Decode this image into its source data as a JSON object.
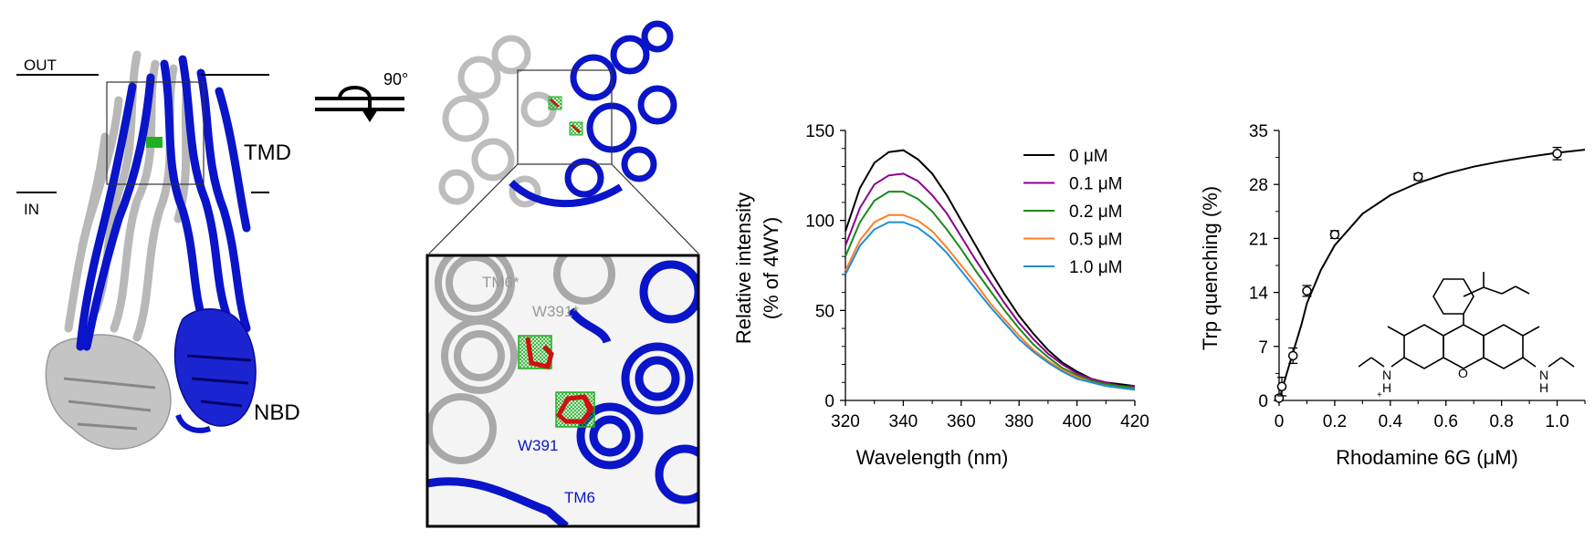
{
  "structure_panel": {
    "out_label": "OUT",
    "in_label": "IN",
    "tmd_label": "TMD",
    "nbd_label": "NBD",
    "rotation_label": "90°",
    "colors": {
      "chain_a": "#b8b8b8",
      "chain_b": "#0a14c8"
    }
  },
  "zoom_panel": {
    "tm6_star_label": "TM6*",
    "w391_star_label": "W391*",
    "w391_label": "W391",
    "tm6_label": "TM6",
    "colors": {
      "ligand": "#d01010",
      "density": "#20b020"
    }
  },
  "chart_data": [
    {
      "type": "line",
      "xlabel": "Wavelength (nm)",
      "ylabel_line1": "Relative intensity",
      "ylabel_line2": "(% of 4WY)",
      "xlim": [
        320,
        420
      ],
      "ylim": [
        0,
        150
      ],
      "x_ticks": [
        "320",
        "340",
        "360",
        "380",
        "400",
        "420"
      ],
      "y_ticks": [
        "0",
        "50",
        "100",
        "150"
      ],
      "legend_position": "top-right",
      "x": [
        320,
        325,
        330,
        335,
        340,
        345,
        350,
        355,
        360,
        365,
        370,
        375,
        380,
        385,
        390,
        395,
        400,
        405,
        410,
        415,
        420
      ],
      "series": [
        {
          "name": "0 μM",
          "color": "#000000",
          "values": [
            94,
            118,
            132,
            138,
            139,
            134,
            126,
            114,
            100,
            86,
            72,
            59,
            47,
            37,
            28,
            21,
            16,
            12,
            10,
            9,
            8
          ]
        },
        {
          "name": "0.1 μM",
          "color": "#8b008b",
          "values": [
            86,
            107,
            120,
            125,
            126,
            122,
            114,
            104,
            91,
            78,
            66,
            54,
            43,
            34,
            26,
            20,
            15,
            12,
            10,
            8,
            8
          ]
        },
        {
          "name": "0.2 μM",
          "color": "#1a8a1a",
          "values": [
            80,
            99,
            111,
            116,
            116,
            112,
            105,
            95,
            84,
            72,
            61,
            50,
            40,
            31,
            24,
            18,
            14,
            11,
            9,
            8,
            7
          ]
        },
        {
          "name": "0.5 μM",
          "color": "#ff7f27",
          "values": [
            72,
            89,
            99,
            103,
            103,
            100,
            94,
            85,
            75,
            65,
            54,
            45,
            36,
            28,
            22,
            17,
            13,
            10,
            8,
            7,
            6
          ]
        },
        {
          "name": "1.0 μM",
          "color": "#1e8fd6",
          "values": [
            70,
            86,
            95,
            99,
            99,
            96,
            90,
            82,
            72,
            62,
            52,
            43,
            34,
            27,
            21,
            16,
            12,
            10,
            8,
            7,
            6
          ]
        }
      ]
    },
    {
      "type": "scatter",
      "xlabel": "Rhodamine 6G (μM)",
      "ylabel": "Trp quenching (%)",
      "xlim": [
        0,
        1.1
      ],
      "ylim": [
        0,
        35
      ],
      "x_ticks": [
        "0",
        "0.2",
        "0.4",
        "0.6",
        "0.8",
        "1.0"
      ],
      "y_ticks": [
        "0",
        "7",
        "14",
        "21",
        "28",
        "35"
      ],
      "points": [
        {
          "x": 0,
          "y": 0.3,
          "err": 0.3
        },
        {
          "x": 0.01,
          "y": 1.8,
          "err": 1.2
        },
        {
          "x": 0.05,
          "y": 5.8,
          "err": 1.0
        },
        {
          "x": 0.1,
          "y": 14.2,
          "err": 0.7
        },
        {
          "x": 0.2,
          "y": 21.5,
          "err": 0.5
        },
        {
          "x": 0.5,
          "y": 29.0,
          "err": 0.4
        },
        {
          "x": 1.0,
          "y": 32.0,
          "err": 0.8
        }
      ],
      "fit_curve": {
        "x": [
          0,
          0.02,
          0.05,
          0.08,
          0.1,
          0.15,
          0.2,
          0.3,
          0.4,
          0.5,
          0.6,
          0.7,
          0.8,
          0.9,
          1.0,
          1.1
        ],
        "y": [
          0,
          2.6,
          6.2,
          9.8,
          12.6,
          16.9,
          20.1,
          24.2,
          26.6,
          28.2,
          29.4,
          30.3,
          31.0,
          31.6,
          32.1,
          32.5
        ]
      },
      "molecule_labels": {
        "n_left": "N",
        "h_left": "H",
        "plus": "+",
        "n_right": "N",
        "h_right": "H",
        "o_ring": "O"
      }
    }
  ]
}
